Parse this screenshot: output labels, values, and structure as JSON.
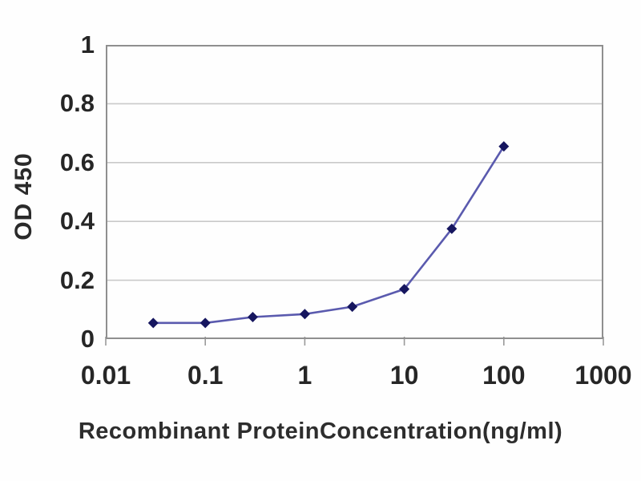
{
  "chart_data": {
    "type": "line",
    "title": "",
    "xlabel": "Recombinant ProteinConcentration(ng/ml)",
    "ylabel": "OD 450",
    "x_scale": "log",
    "xlim": [
      0.01,
      1000
    ],
    "ylim": [
      0,
      1
    ],
    "x_ticks": [
      "0.01",
      "0.1",
      "1",
      "10",
      "100",
      "1000"
    ],
    "y_ticks": [
      "0",
      "0.2",
      "0.4",
      "0.6",
      "0.8",
      "1"
    ],
    "grid": "horizontal",
    "legend_position": "none",
    "x": [
      0.03,
      0.1,
      0.3,
      1,
      3,
      10,
      30,
      100
    ],
    "series": [
      {
        "name": "OD 450",
        "values": [
          0.055,
          0.055,
          0.075,
          0.085,
          0.11,
          0.17,
          0.375,
          0.655
        ]
      }
    ],
    "colors": {
      "line": "#5a5aae",
      "marker": "#16165f",
      "border": "#8f8f8f",
      "gridline": "#c9c9c9",
      "tick_mark": "#9a9a9a"
    },
    "marker_shape": "diamond"
  }
}
